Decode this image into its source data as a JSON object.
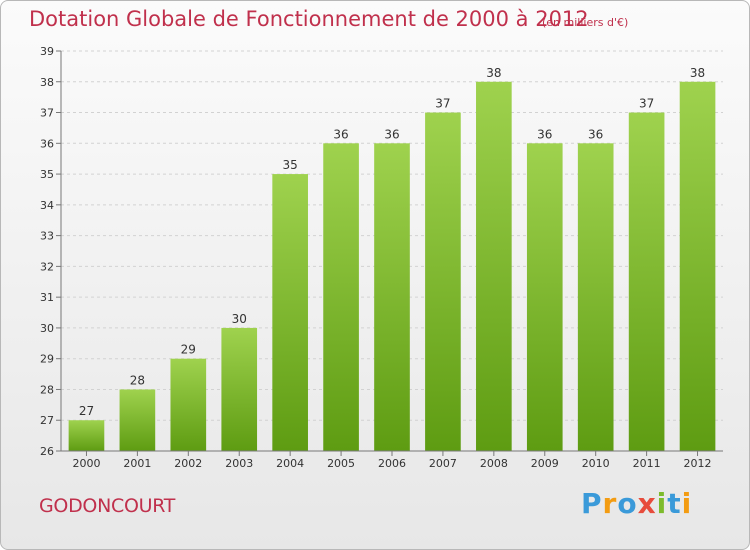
{
  "header": {
    "title": "Dotation Globale de Fonctionnement de 2000 à 2012",
    "unit": "(en milliers d'€)"
  },
  "footer": {
    "commune": "GODONCOURT",
    "brand_letters": [
      {
        "char": "P",
        "color": "#3a9ad9"
      },
      {
        "char": "r",
        "color": "#f39c12"
      },
      {
        "char": "o",
        "color": "#3a9ad9"
      },
      {
        "char": "x",
        "color": "#e74c3c"
      },
      {
        "char": "i",
        "color": "#7dbb2c"
      },
      {
        "char": "t",
        "color": "#3a9ad9"
      },
      {
        "char": "i",
        "color": "#f39c12"
      }
    ]
  },
  "chart_data": {
    "type": "bar",
    "title": "Dotation Globale de Fonctionnement de 2000 à 2012",
    "subtitle": "(en milliers d'€)",
    "categories": [
      "2000",
      "2001",
      "2002",
      "2003",
      "2004",
      "2005",
      "2006",
      "2007",
      "2008",
      "2009",
      "2010",
      "2011",
      "2012"
    ],
    "values": [
      27,
      28,
      29,
      30,
      35,
      36,
      36,
      37,
      38,
      36,
      36,
      37,
      38
    ],
    "ylim": [
      26,
      39
    ],
    "yticks": [
      26,
      27,
      28,
      29,
      30,
      31,
      32,
      33,
      34,
      35,
      36,
      37,
      38,
      39
    ],
    "grid": true,
    "bar_color_top": "#9fd24e",
    "bar_color_bottom": "#5e9c12"
  }
}
